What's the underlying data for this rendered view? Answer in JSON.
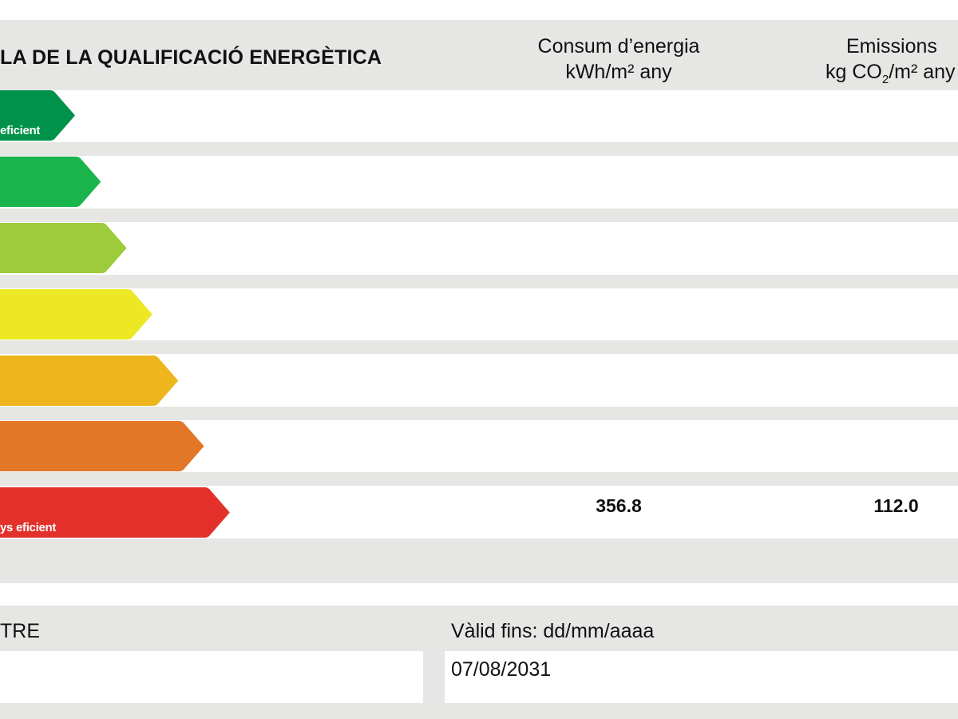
{
  "header": {
    "title": "LA DE LA QUALIFICACIÓ ENERGÈTICA",
    "energy_col": {
      "line1": "Consum d’energia",
      "line2": "kWh/m² any"
    },
    "emissions_col": {
      "line1": "Emissions",
      "line2_prefix": "kg CO",
      "line2_sub": "2",
      "line2_suffix": "/m² any"
    }
  },
  "scale": {
    "bars": [
      {
        "color": "#00924a",
        "label": "eficient"
      },
      {
        "color": "#19b44b",
        "label": ""
      },
      {
        "color": "#9ccc3b",
        "label": ""
      },
      {
        "color": "#ece823",
        "label": ""
      },
      {
        "color": "#eeb61c",
        "label": ""
      },
      {
        "color": "#e27728",
        "label": ""
      },
      {
        "color": "#e3302b",
        "label": "ys eficient"
      }
    ]
  },
  "values": {
    "energy": "356.8",
    "emissions": "112.0"
  },
  "footer": {
    "left_label": "TRE",
    "right_label": "Vàlid fins: dd/mm/aaaa",
    "left_value": "",
    "right_value": "07/08/2031"
  }
}
